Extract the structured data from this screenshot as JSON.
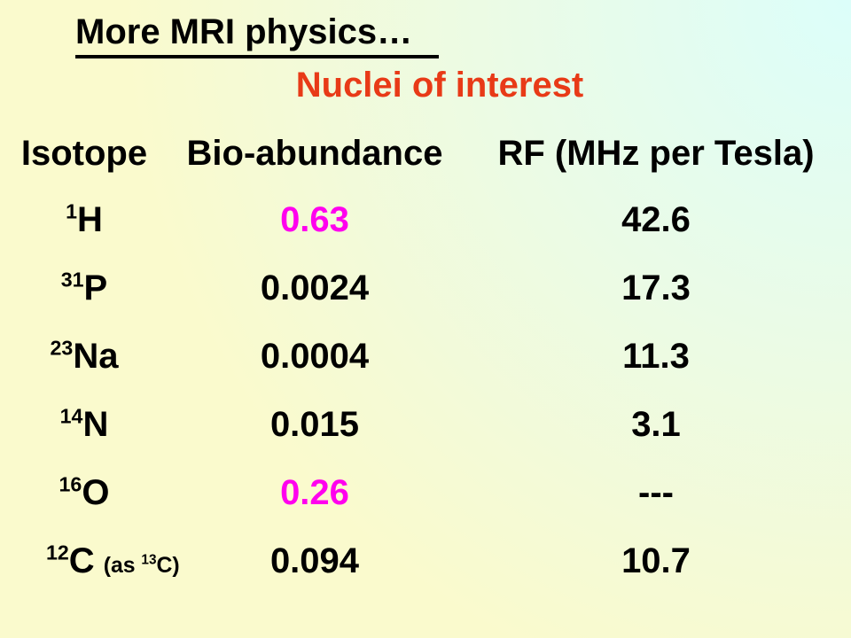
{
  "slide": {
    "title": "More MRI physics…",
    "subtitle": "Nuclei of interest"
  },
  "colors": {
    "title_text": "#000000",
    "body_text": "#000000",
    "subtitle_red": "#E83A17",
    "highlight_magenta": "#FF00EE",
    "bg_yellow": "#FAFACD",
    "bg_cyan": "#DCFEFA"
  },
  "table": {
    "headers": [
      "Isotope",
      "Bio-abundance",
      "RF (MHz per Tesla)"
    ],
    "rows": [
      {
        "mass": "1",
        "symbol": "H",
        "bio": "0.63",
        "rf": "42.6",
        "bio_highlighted": true
      },
      {
        "mass": "31",
        "symbol": "P",
        "bio": "0.0024",
        "rf": "17.3",
        "bio_highlighted": false
      },
      {
        "mass": "23",
        "symbol": "Na",
        "bio": "0.0004",
        "rf": "11.3",
        "bio_highlighted": false
      },
      {
        "mass": "14",
        "symbol": "N",
        "bio": "0.015",
        "rf": "3.1",
        "bio_highlighted": false
      },
      {
        "mass": "16",
        "symbol": "O",
        "bio": "0.26",
        "rf": "---",
        "bio_highlighted": true
      },
      {
        "mass": "12",
        "symbol": "C",
        "note_open": "(as ",
        "note_sup": "13",
        "note_close": "C)",
        "bio": "0.094",
        "rf": "10.7",
        "bio_highlighted": false
      }
    ]
  }
}
